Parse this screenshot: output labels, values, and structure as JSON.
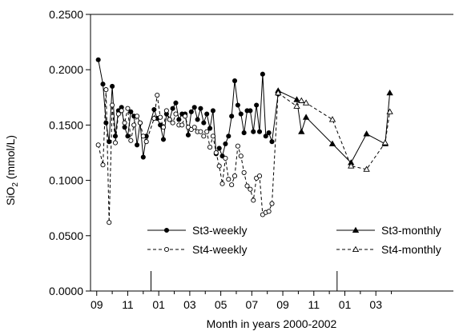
{
  "chart_data": {
    "type": "line",
    "title": "",
    "xlabel": "Month in years 2000-2002",
    "ylabel_main": "SiO",
    "ylabel_sub": "2",
    "ylabel_unit": " (mmol/L)",
    "ylim": [
      0,
      0.25
    ],
    "yticks": [
      "0.0000",
      "0.0500",
      "0.1000",
      "0.1500",
      "0.2000",
      "0.2500"
    ],
    "xlim": [
      8.6,
      32.0
    ],
    "xticks": [
      {
        "x": 9,
        "label": "09"
      },
      {
        "x": 11,
        "label": "11"
      },
      {
        "x": 13,
        "label": "01"
      },
      {
        "x": 15,
        "label": "03"
      },
      {
        "x": 17,
        "label": "05"
      },
      {
        "x": 19,
        "label": "07"
      },
      {
        "x": 21,
        "label": "09"
      },
      {
        "x": 23,
        "label": "11"
      },
      {
        "x": 25,
        "label": "01"
      },
      {
        "x": 27,
        "label": "03"
      }
    ],
    "minor_xticks": [
      10,
      12,
      14,
      16,
      18,
      20,
      22,
      24,
      26,
      28
    ],
    "year_boundaries": [
      12.5,
      24.5
    ],
    "grid": false,
    "legend": [
      {
        "name": "St3-weekly",
        "series": 0
      },
      {
        "name": "St4-weekly",
        "series": 1
      },
      {
        "name": "St3-monthly",
        "series": 2
      },
      {
        "name": "St4-monthly",
        "series": 3
      }
    ],
    "series": [
      {
        "name": "St3-weekly",
        "marker": "filled-circle",
        "dash": false,
        "points": [
          [
            9.1,
            0.209
          ],
          [
            9.4,
            0.187
          ],
          [
            9.6,
            0.152
          ],
          [
            9.8,
            0.135
          ],
          [
            10.0,
            0.185
          ],
          [
            10.2,
            0.14
          ],
          [
            10.4,
            0.163
          ],
          [
            10.6,
            0.166
          ],
          [
            10.8,
            0.148
          ],
          [
            11.0,
            0.14
          ],
          [
            11.2,
            0.162
          ],
          [
            11.4,
            0.158
          ],
          [
            11.6,
            0.132
          ],
          [
            11.8,
            0.152
          ],
          [
            12.0,
            0.121
          ],
          [
            12.2,
            0.14
          ],
          [
            12.7,
            0.164
          ],
          [
            12.9,
            0.156
          ],
          [
            13.1,
            0.15
          ],
          [
            13.3,
            0.137
          ],
          [
            13.5,
            0.16
          ],
          [
            13.7,
            0.155
          ],
          [
            13.9,
            0.165
          ],
          [
            14.1,
            0.17
          ],
          [
            14.3,
            0.155
          ],
          [
            14.5,
            0.16
          ],
          [
            14.7,
            0.16
          ],
          [
            14.9,
            0.141
          ],
          [
            15.1,
            0.162
          ],
          [
            15.3,
            0.166
          ],
          [
            15.5,
            0.155
          ],
          [
            15.7,
            0.165
          ],
          [
            15.9,
            0.152
          ],
          [
            16.1,
            0.16
          ],
          [
            16.3,
            0.147
          ],
          [
            16.5,
            0.163
          ],
          [
            16.7,
            0.124
          ],
          [
            16.9,
            0.129
          ],
          [
            17.1,
            0.122
          ],
          [
            17.3,
            0.133
          ],
          [
            17.5,
            0.14
          ],
          [
            17.7,
            0.158
          ],
          [
            17.9,
            0.19
          ],
          [
            18.1,
            0.168
          ],
          [
            18.3,
            0.16
          ],
          [
            18.5,
            0.143
          ],
          [
            18.7,
            0.163
          ],
          [
            18.9,
            0.163
          ],
          [
            19.1,
            0.144
          ],
          [
            19.3,
            0.168
          ],
          [
            19.5,
            0.144
          ],
          [
            19.7,
            0.196
          ],
          [
            19.9,
            0.14
          ],
          [
            20.1,
            0.143
          ],
          [
            20.3,
            0.135
          ],
          [
            20.7,
            0.178
          ]
        ]
      },
      {
        "name": "St4-weekly",
        "marker": "open-circle",
        "dash": true,
        "points": [
          [
            9.1,
            0.132
          ],
          [
            9.4,
            0.114
          ],
          [
            9.6,
            0.182
          ],
          [
            9.8,
            0.062
          ],
          [
            10.0,
            0.168
          ],
          [
            10.2,
            0.134
          ],
          [
            10.4,
            0.16
          ],
          [
            10.6,
            0.163
          ],
          [
            10.8,
            0.152
          ],
          [
            11.0,
            0.165
          ],
          [
            11.2,
            0.136
          ],
          [
            11.4,
            0.15
          ],
          [
            11.6,
            0.158
          ],
          [
            11.8,
            0.152
          ],
          [
            12.0,
            0.14
          ],
          [
            12.2,
            0.135
          ],
          [
            12.7,
            0.156
          ],
          [
            12.9,
            0.177
          ],
          [
            13.1,
            0.157
          ],
          [
            13.3,
            0.148
          ],
          [
            13.5,
            0.163
          ],
          [
            13.7,
            0.155
          ],
          [
            13.9,
            0.152
          ],
          [
            14.1,
            0.16
          ],
          [
            14.3,
            0.15
          ],
          [
            14.5,
            0.15
          ],
          [
            14.7,
            0.158
          ],
          [
            14.9,
            0.148
          ],
          [
            15.1,
            0.146
          ],
          [
            15.3,
            0.148
          ],
          [
            15.5,
            0.144
          ],
          [
            15.7,
            0.144
          ],
          [
            15.9,
            0.14
          ],
          [
            16.1,
            0.144
          ],
          [
            16.3,
            0.13
          ],
          [
            16.5,
            0.14
          ],
          [
            16.7,
            0.125
          ],
          [
            16.9,
            0.113
          ],
          [
            17.1,
            0.097
          ],
          [
            17.3,
            0.12
          ],
          [
            17.5,
            0.101
          ],
          [
            17.7,
            0.096
          ],
          [
            17.9,
            0.104
          ],
          [
            18.1,
            0.131
          ],
          [
            18.3,
            0.122
          ],
          [
            18.5,
            0.107
          ],
          [
            18.7,
            0.095
          ],
          [
            18.9,
            0.092
          ],
          [
            19.1,
            0.082
          ],
          [
            19.3,
            0.102
          ],
          [
            19.5,
            0.104
          ],
          [
            19.7,
            0.069
          ],
          [
            19.9,
            0.071
          ],
          [
            20.1,
            0.072
          ],
          [
            20.3,
            0.079
          ],
          [
            20.7,
            0.18
          ]
        ]
      },
      {
        "name": "St3-monthly",
        "marker": "filled-triangle",
        "dash": false,
        "points": [
          [
            20.7,
            0.181
          ],
          [
            21.9,
            0.173
          ],
          [
            22.2,
            0.144
          ],
          [
            22.5,
            0.157
          ],
          [
            24.2,
            0.133
          ],
          [
            25.4,
            0.116
          ],
          [
            26.4,
            0.142
          ],
          [
            27.6,
            0.133
          ],
          [
            27.9,
            0.179
          ]
        ]
      },
      {
        "name": "St4-monthly",
        "marker": "open-triangle",
        "dash": true,
        "points": [
          [
            20.7,
            0.179
          ],
          [
            21.9,
            0.167
          ],
          [
            22.2,
            0.172
          ],
          [
            22.5,
            0.17
          ],
          [
            24.2,
            0.155
          ],
          [
            25.4,
            0.113
          ],
          [
            26.4,
            0.11
          ],
          [
            27.6,
            0.134
          ],
          [
            27.9,
            0.162
          ]
        ]
      }
    ]
  }
}
